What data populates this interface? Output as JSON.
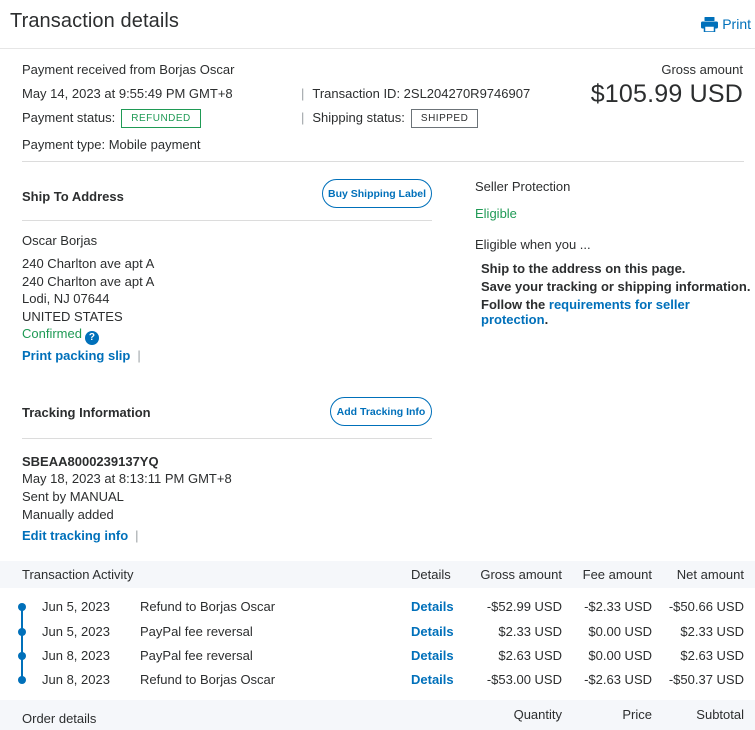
{
  "header": {
    "title": "Transaction details",
    "print_label": "Print"
  },
  "summary": {
    "received_from": "Payment received from Borjas Oscar",
    "date": "May 14, 2023 at 9:55:49 PM GMT+8",
    "transaction_id": "Transaction ID: 2SL204270R9746907",
    "payment_status_label": "Payment status:",
    "payment_status": "REFUNDED",
    "shipping_status_label": "Shipping status:",
    "shipping_status": "SHIPPED",
    "payment_type": "Payment type: Mobile payment",
    "gross_label": "Gross amount",
    "gross_value": "$105.99 USD"
  },
  "ship_to": {
    "heading": "Ship To Address",
    "button": "Buy Shipping Label",
    "name": "Oscar Borjas",
    "lines": [
      "240 Charlton ave apt A",
      "240 Charlton ave apt A",
      "Lodi, NJ 07644",
      "UNITED STATES"
    ],
    "confirmed": "Confirmed",
    "help": "?",
    "print_slip": "Print packing slip"
  },
  "seller_protection": {
    "heading": "Seller Protection",
    "status": "Eligible",
    "eligible_when": "Eligible when you ...",
    "item1": "Ship to the address on this page.",
    "item2": "Save your tracking or shipping information.",
    "item3_prefix": "Follow the ",
    "item3_link": "requirements for seller protection",
    "item3_suffix": "."
  },
  "tracking": {
    "heading": "Tracking Information",
    "button": "Add Tracking Info",
    "number": "SBEAA8000239137YQ",
    "date": "May 18, 2023 at 8:13:11 PM GMT+8",
    "sent_by": "Sent by MANUAL",
    "added": "Manually added",
    "edit": "Edit tracking info"
  },
  "activity": {
    "headers": {
      "title": "Transaction Activity",
      "details": "Details",
      "gross": "Gross amount",
      "fee": "Fee amount",
      "net": "Net amount"
    },
    "rows": [
      {
        "date": "Jun 5, 2023",
        "desc": "Refund to Borjas Oscar",
        "details": "Details",
        "gross": "-$52.99 USD",
        "fee": "-$2.33 USD",
        "net": "-$50.66 USD"
      },
      {
        "date": "Jun 5, 2023",
        "desc": "PayPal fee reversal",
        "details": "Details",
        "gross": "$2.33 USD",
        "fee": "$0.00 USD",
        "net": "$2.33 USD"
      },
      {
        "date": "Jun 8, 2023",
        "desc": "PayPal fee reversal",
        "details": "Details",
        "gross": "$2.63 USD",
        "fee": "$0.00 USD",
        "net": "$2.63 USD"
      },
      {
        "date": "Jun 8, 2023",
        "desc": "Refund to Borjas Oscar",
        "details": "Details",
        "gross": "-$53.00 USD",
        "fee": "-$2.63 USD",
        "net": "-$50.37 USD"
      }
    ]
  },
  "order": {
    "title": "Order details",
    "quantity": "Quantity",
    "price": "Price",
    "subtotal": "Subtotal"
  },
  "icons": {
    "print": "printer-icon",
    "help": "question-circle-icon"
  },
  "colors": {
    "link": "#0070ba",
    "green": "#1f9a55",
    "text": "#2c2e2f",
    "table_header_bg": "#f5f7fa"
  }
}
